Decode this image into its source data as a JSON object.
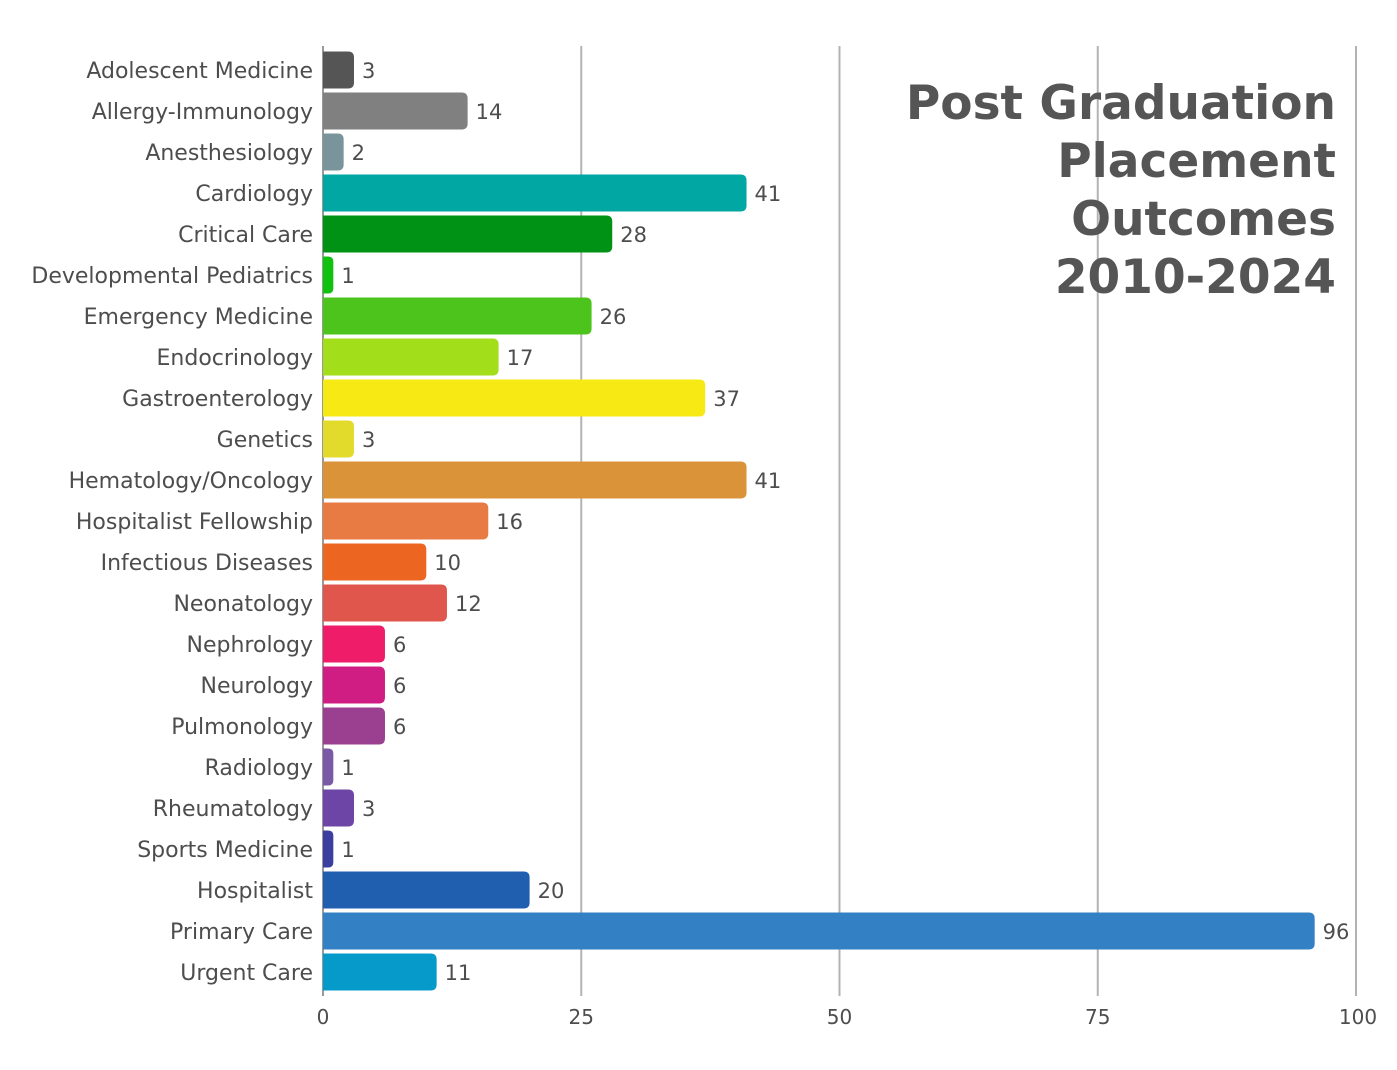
{
  "chart_data": {
    "type": "bar",
    "orientation": "horizontal",
    "title_lines": [
      "Post Graduation",
      "Placement",
      "Outcomes",
      "2010-2024"
    ],
    "xlabel": "",
    "ylabel": "",
    "xlim": [
      0,
      100
    ],
    "xticks": [
      0,
      25,
      50,
      75,
      100
    ],
    "grid": "vertical",
    "legend": "none",
    "title_placement": "top-right",
    "categories": [
      "Adolescent Medicine",
      "Allergy-Immunology",
      "Anesthesiology",
      "Cardiology",
      "Critical Care",
      "Developmental Pediatrics",
      "Emergency Medicine",
      "Endocrinology",
      "Gastroenterology",
      "Genetics",
      "Hematology/Oncology",
      "Hospitalist Fellowship",
      "Infectious Diseases",
      "Neonatology",
      "Nephrology",
      "Neurology",
      "Pulmonology",
      "Radiology",
      "Rheumatology",
      "Sports Medicine",
      "Hospitalist",
      "Primary Care",
      "Urgent Care"
    ],
    "values": [
      3,
      14,
      2,
      41,
      28,
      1,
      26,
      17,
      37,
      3,
      41,
      16,
      10,
      12,
      6,
      6,
      6,
      1,
      3,
      1,
      20,
      96,
      11
    ],
    "colors": [
      "#555555",
      "#808080",
      "#7a949b",
      "#00a7a3",
      "#009214",
      "#11c10f",
      "#4cc41b",
      "#a3de1b",
      "#f7ea14",
      "#e3db2b",
      "#db9339",
      "#e87b44",
      "#ec6521",
      "#e0564c",
      "#ef1d69",
      "#d01d83",
      "#9b3f90",
      "#7a5aa6",
      "#6d45a6",
      "#3b3e9f",
      "#205eb0",
      "#3480c4",
      "#059ac9"
    ],
    "gridline_color": "#b3b3b3",
    "axis_color": "#999999"
  }
}
